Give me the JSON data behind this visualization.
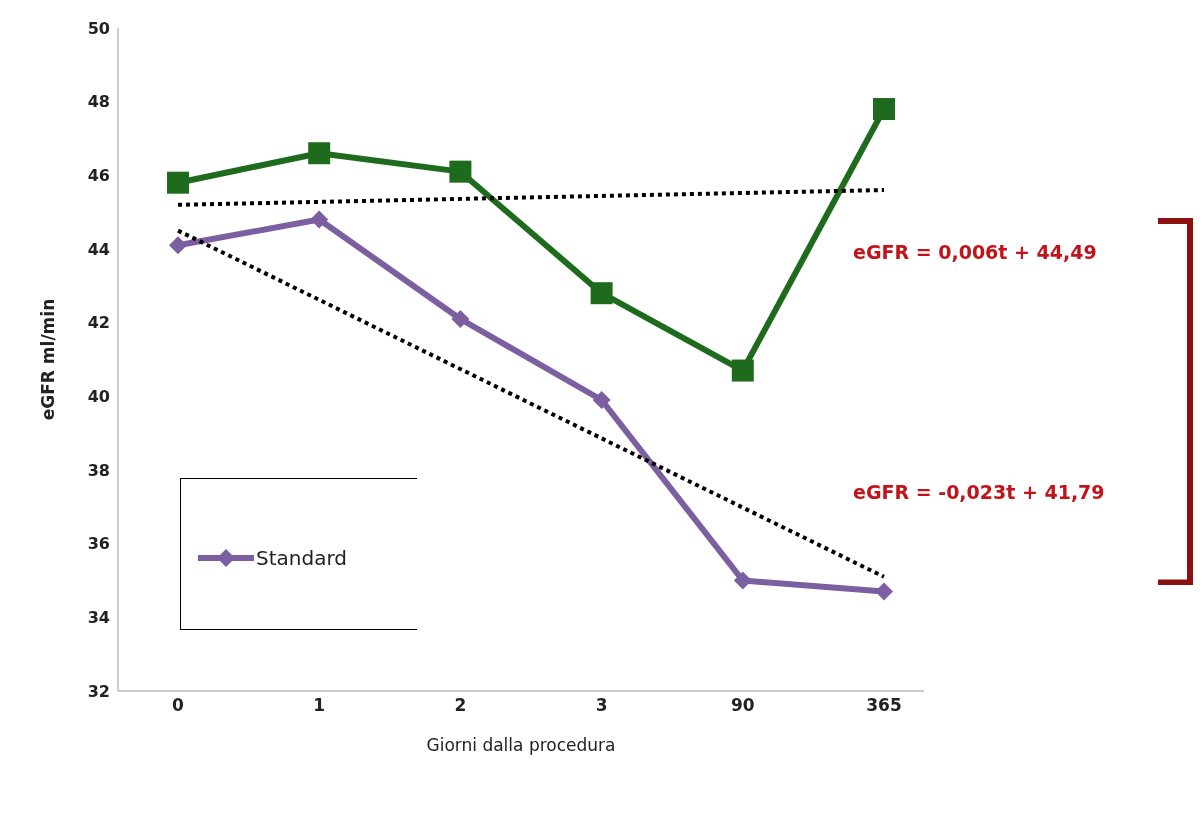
{
  "chart_data": {
    "type": "line",
    "xlabel": "Giorni dalla procedura",
    "ylabel": "eGFR ml/min",
    "categories": [
      "0",
      "1",
      "2",
      "3",
      "90",
      "365"
    ],
    "series": [
      {
        "color": "#1e6b1e",
        "marker": "square",
        "values": [
          45.8,
          46.6,
          46.1,
          42.8,
          40.7,
          47.8
        ]
      },
      {
        "name": "Standard",
        "color": "#7b5fa0",
        "marker": "diamond",
        "values": [
          44.1,
          44.8,
          42.1,
          39.9,
          35.0,
          34.7
        ]
      },
      {
        "type": "line",
        "color": "#000000",
        "marker": "none",
        "line_style": "dotted",
        "values": [
          45.2,
          null,
          null,
          null,
          null,
          45.6
        ]
      },
      {
        "type": "line",
        "color": "#000000",
        "marker": "none",
        "line_style": "dotted",
        "values": [
          44.5,
          null,
          null,
          null,
          null,
          35.1
        ]
      }
    ],
    "ylim": [
      32,
      50
    ],
    "yticks": [
      32,
      34,
      36,
      38,
      40,
      42,
      44,
      46,
      48,
      50
    ],
    "grid": false,
    "legend": "bottom left",
    "line_style": "solid",
    "annotations": [
      "eGFR = 0,006t + 44,49",
      "eGFR = -0,023t + 41,79"
    ]
  }
}
